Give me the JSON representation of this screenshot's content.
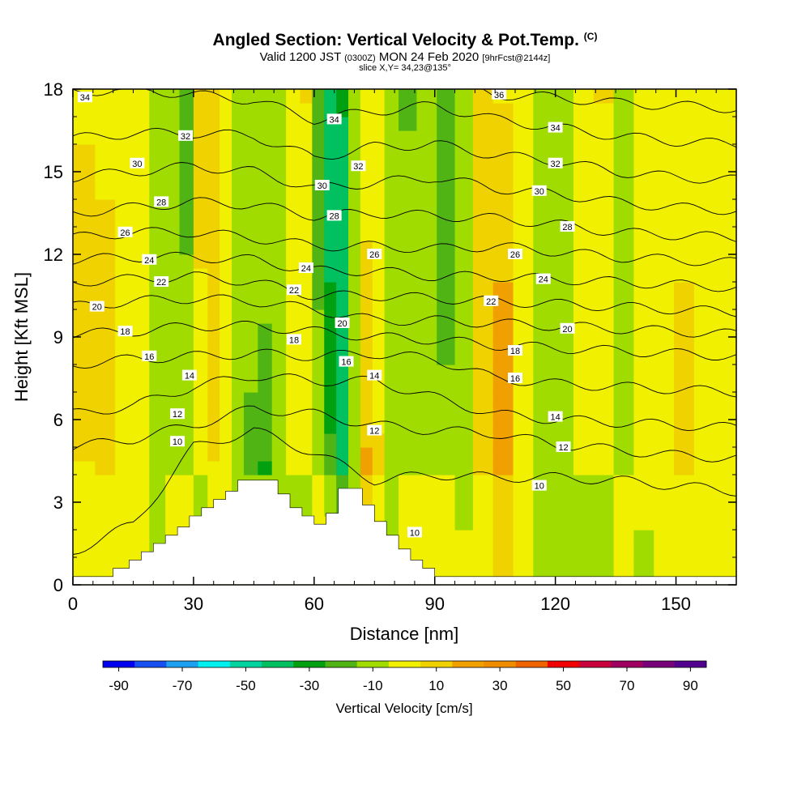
{
  "title": {
    "main": "Angled Section: Vertical Velocity & Pot.Temp.",
    "main_tag": "(C)",
    "valid_prefix": "Valid 1200 JST",
    "valid_utc": "(0300Z)",
    "valid_date": "MON 24 Feb 2020",
    "forecast": "[9hrFcst@2144z]",
    "slice": "slice X,Y= 34,23@135°"
  },
  "colorbar": {
    "label": "Vertical Velocity [cm/s]",
    "tick_labels": [
      "-90",
      "-70",
      "-50",
      "-30",
      "-10",
      "10",
      "30",
      "50",
      "70",
      "90"
    ],
    "colors": [
      "#0000f0",
      "#1650f0",
      "#1ea0f0",
      "#00f0f0",
      "#00d2a0",
      "#00c060",
      "#00a010",
      "#50b414",
      "#a0dc00",
      "#f0f000",
      "#f0d200",
      "#f0a000",
      "#f08c00",
      "#f06400",
      "#f00000",
      "#c8003c",
      "#a00060",
      "#780078",
      "#50008c"
    ]
  },
  "chart_data": {
    "type": "heatmap",
    "title": "Angled Section: Vertical Velocity & Pot.Temp.",
    "xlabel": "Distance [nm]",
    "ylabel": "Height [Kft MSL]",
    "xlim": [
      0,
      165
    ],
    "ylim": [
      0,
      18
    ],
    "x_ticks": [
      "0",
      "30",
      "60",
      "90",
      "120",
      "150"
    ],
    "y_ticks": [
      "0",
      "3",
      "6",
      "9",
      "12",
      "15",
      "18"
    ],
    "grid": false,
    "fill_variable": "Vertical Velocity [cm/s]",
    "fill_levels": [
      -90,
      -80,
      -70,
      -60,
      -50,
      -40,
      -30,
      -20,
      -10,
      0,
      10,
      20,
      30,
      40,
      50,
      60,
      70,
      80,
      90,
      100
    ],
    "vertical_velocity_columns": [
      {
        "x": 3,
        "value": 12
      },
      {
        "x": 8,
        "value": 15
      },
      {
        "x": 13,
        "value": 8
      },
      {
        "x": 17,
        "value": 5
      },
      {
        "x": 21,
        "value": -5
      },
      {
        "x": 25,
        "value": -18
      },
      {
        "x": 28,
        "value": -22
      },
      {
        "x": 32,
        "value": 14
      },
      {
        "x": 35,
        "value": 18
      },
      {
        "x": 38,
        "value": 8
      },
      {
        "x": 41,
        "value": -6
      },
      {
        "x": 44,
        "value": -12
      },
      {
        "x": 48,
        "value": -28
      },
      {
        "x": 51,
        "value": -10
      },
      {
        "x": 55,
        "value": 18
      },
      {
        "x": 58,
        "value": 12
      },
      {
        "x": 61,
        "value": -16
      },
      {
        "x": 64,
        "value": -32
      },
      {
        "x": 67,
        "value": -40
      },
      {
        "x": 70,
        "value": -8
      },
      {
        "x": 73,
        "value": 22
      },
      {
        "x": 76,
        "value": 16
      },
      {
        "x": 79,
        "value": -12
      },
      {
        "x": 83,
        "value": -22
      },
      {
        "x": 88,
        "value": -10
      },
      {
        "x": 93,
        "value": -20
      },
      {
        "x": 97,
        "value": -6
      },
      {
        "x": 102,
        "value": 18
      },
      {
        "x": 107,
        "value": 24
      },
      {
        "x": 112,
        "value": 10
      },
      {
        "x": 117,
        "value": -8
      },
      {
        "x": 122,
        "value": -16
      },
      {
        "x": 127,
        "value": 6
      },
      {
        "x": 132,
        "value": 12
      },
      {
        "x": 137,
        "value": -4
      },
      {
        "x": 142,
        "value": 4
      },
      {
        "x": 147,
        "value": 10
      },
      {
        "x": 152,
        "value": 12
      },
      {
        "x": 157,
        "value": 8
      },
      {
        "x": 162,
        "value": 6
      }
    ],
    "contour_variable": "Potential Temperature (C)",
    "contour_levels": [
      10,
      12,
      14,
      16,
      18,
      20,
      22,
      24,
      26,
      28,
      30,
      32,
      34,
      36
    ],
    "contour_heights_at_x": {
      "x": [
        0,
        15,
        30,
        45,
        60,
        75,
        90,
        105,
        120,
        135,
        150,
        165
      ],
      "levels": {
        "10": [
          1.2,
          2.2,
          5.0,
          5.6,
          4.8,
          3.8,
          4.0,
          3.9,
          3.9,
          3.8,
          3.6,
          3.4
        ],
        "12": [
          5.0,
          5.3,
          5.8,
          6.4,
          6.2,
          5.8,
          5.6,
          5.5,
          5.1,
          4.9,
          4.7,
          4.6
        ],
        "14": [
          6.2,
          6.5,
          7.2,
          7.6,
          7.4,
          7.4,
          6.8,
          6.2,
          6.0,
          5.9,
          5.8,
          5.7
        ],
        "16": [
          8.0,
          8.2,
          8.3,
          8.4,
          8.3,
          8.4,
          8.2,
          7.5,
          7.3,
          7.2,
          7.1,
          7.0
        ],
        "18": [
          9.1,
          9.2,
          9.4,
          9.4,
          9.2,
          9.0,
          8.9,
          8.7,
          8.6,
          8.5,
          8.4,
          8.3
        ],
        "20": [
          10.1,
          10.3,
          10.4,
          10.3,
          10.0,
          9.6,
          9.6,
          9.5,
          9.4,
          9.3,
          9.2,
          9.1
        ],
        "22": [
          11.0,
          11.1,
          11.2,
          11.0,
          10.5,
          10.5,
          10.4,
          10.3,
          10.2,
          10.1,
          10.0,
          9.9
        ],
        "24": [
          11.8,
          11.9,
          11.9,
          11.8,
          11.4,
          11.4,
          11.2,
          11.2,
          11.1,
          11.0,
          10.9,
          10.8
        ],
        "26": [
          12.6,
          12.8,
          12.8,
          12.6,
          12.3,
          12.3,
          12.2,
          12.3,
          12.1,
          11.9,
          11.8,
          11.7
        ],
        "28": [
          13.5,
          13.7,
          13.9,
          13.8,
          13.4,
          13.5,
          13.4,
          13.3,
          13.1,
          12.8,
          12.7,
          12.6
        ],
        "30": [
          14.8,
          15.0,
          15.2,
          15.0,
          14.4,
          14.6,
          14.8,
          14.4,
          14.2,
          13.9,
          13.7,
          13.6
        ],
        "32": [
          16.2,
          16.4,
          16.4,
          16.3,
          15.5,
          15.9,
          16.0,
          15.6,
          15.4,
          15.0,
          14.8,
          14.7
        ],
        "34": [
          17.9,
          18.0,
          17.8,
          17.6,
          16.9,
          17.2,
          17.4,
          16.9,
          16.6,
          16.3,
          16.1,
          16.0
        ],
        "36": [
          18.8,
          18.9,
          18.8,
          18.7,
          18.3,
          18.6,
          18.4,
          17.8,
          17.7,
          17.5,
          17.4,
          17.3
        ]
      }
    },
    "contour_labels": [
      {
        "text": "34",
        "x": 3,
        "y": 17.7
      },
      {
        "text": "32",
        "x": 28,
        "y": 16.3
      },
      {
        "text": "30",
        "x": 16,
        "y": 15.3
      },
      {
        "text": "28",
        "x": 22,
        "y": 13.9
      },
      {
        "text": "26",
        "x": 13,
        "y": 12.8
      },
      {
        "text": "24",
        "x": 19,
        "y": 11.8
      },
      {
        "text": "22",
        "x": 22,
        "y": 11.0
      },
      {
        "text": "20",
        "x": 6,
        "y": 10.1
      },
      {
        "text": "18",
        "x": 13,
        "y": 9.2
      },
      {
        "text": "16",
        "x": 19,
        "y": 8.3
      },
      {
        "text": "14",
        "x": 29,
        "y": 7.6
      },
      {
        "text": "12",
        "x": 26,
        "y": 6.2
      },
      {
        "text": "10",
        "x": 26,
        "y": 5.2
      },
      {
        "text": "34",
        "x": 65,
        "y": 16.9
      },
      {
        "text": "32",
        "x": 71,
        "y": 15.2
      },
      {
        "text": "30",
        "x": 62,
        "y": 14.5
      },
      {
        "text": "28",
        "x": 65,
        "y": 13.4
      },
      {
        "text": "26",
        "x": 75,
        "y": 12.0
      },
      {
        "text": "24",
        "x": 58,
        "y": 11.5
      },
      {
        "text": "22",
        "x": 55,
        "y": 10.7
      },
      {
        "text": "20",
        "x": 67,
        "y": 9.5
      },
      {
        "text": "18",
        "x": 55,
        "y": 8.9
      },
      {
        "text": "16",
        "x": 68,
        "y": 8.1
      },
      {
        "text": "14",
        "x": 75,
        "y": 7.6
      },
      {
        "text": "12",
        "x": 75,
        "y": 5.6
      },
      {
        "text": "10",
        "x": 85,
        "y": 1.9
      },
      {
        "text": "36",
        "x": 106,
        "y": 17.8
      },
      {
        "text": "34",
        "x": 120,
        "y": 16.6
      },
      {
        "text": "32",
        "x": 120,
        "y": 15.3
      },
      {
        "text": "30",
        "x": 116,
        "y": 14.3
      },
      {
        "text": "28",
        "x": 123,
        "y": 13.0
      },
      {
        "text": "26",
        "x": 110,
        "y": 12.0
      },
      {
        "text": "24",
        "x": 117,
        "y": 11.1
      },
      {
        "text": "22",
        "x": 104,
        "y": 10.3
      },
      {
        "text": "20",
        "x": 123,
        "y": 9.3
      },
      {
        "text": "18",
        "x": 110,
        "y": 8.5
      },
      {
        "text": "16",
        "x": 110,
        "y": 7.5
      },
      {
        "text": "14",
        "x": 120,
        "y": 6.1
      },
      {
        "text": "12",
        "x": 122,
        "y": 5.0
      },
      {
        "text": "10",
        "x": 116,
        "y": 3.6
      }
    ],
    "terrain": [
      [
        0,
        0.3
      ],
      [
        10,
        0.3
      ],
      [
        10,
        0.6
      ],
      [
        14,
        0.6
      ],
      [
        14,
        0.9
      ],
      [
        17,
        0.9
      ],
      [
        17,
        1.2
      ],
      [
        20,
        1.2
      ],
      [
        20,
        1.5
      ],
      [
        23,
        1.5
      ],
      [
        23,
        1.8
      ],
      [
        26,
        1.8
      ],
      [
        26,
        2.1
      ],
      [
        29,
        2.1
      ],
      [
        29,
        2.5
      ],
      [
        32,
        2.5
      ],
      [
        32,
        2.8
      ],
      [
        35,
        2.8
      ],
      [
        35,
        3.1
      ],
      [
        38,
        3.1
      ],
      [
        38,
        3.4
      ],
      [
        41,
        3.4
      ],
      [
        41,
        3.8
      ],
      [
        51,
        3.8
      ],
      [
        51,
        3.3
      ],
      [
        54,
        3.3
      ],
      [
        54,
        2.8
      ],
      [
        57,
        2.8
      ],
      [
        57,
        2.5
      ],
      [
        60,
        2.5
      ],
      [
        60,
        2.2
      ],
      [
        63,
        2.2
      ],
      [
        63,
        2.6
      ],
      [
        66,
        2.6
      ],
      [
        66,
        3.5
      ],
      [
        72,
        3.5
      ],
      [
        72,
        2.9
      ],
      [
        75,
        2.9
      ],
      [
        75,
        2.3
      ],
      [
        78,
        2.3
      ],
      [
        78,
        1.8
      ],
      [
        81,
        1.8
      ],
      [
        81,
        1.3
      ],
      [
        84,
        1.3
      ],
      [
        84,
        0.9
      ],
      [
        87,
        0.9
      ],
      [
        87,
        0.6
      ],
      [
        90,
        0.6
      ],
      [
        90,
        0.3
      ],
      [
        165,
        0.3
      ]
    ]
  }
}
